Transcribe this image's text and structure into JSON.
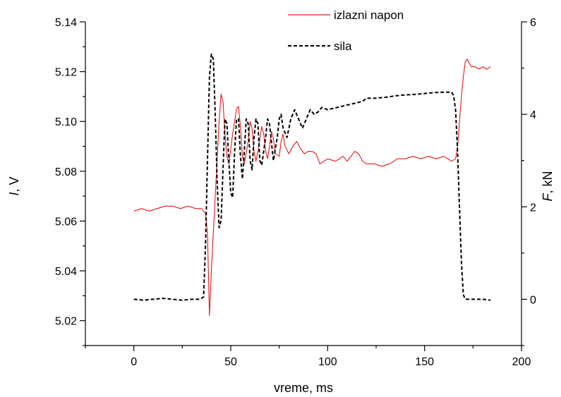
{
  "chart_data": {
    "type": "line",
    "xlabel": "vreme, ms",
    "ylabel_left": {
      "italic": "I",
      "rest": ", V"
    },
    "ylabel_right": {
      "italic": "F",
      "rest": ", kN"
    },
    "xlim": [
      -25,
      200
    ],
    "ylim_left": [
      5.01,
      5.14
    ],
    "ylim_right": [
      -1,
      6
    ],
    "x_ticks": [
      0,
      50,
      100,
      150,
      200
    ],
    "y_left_ticks": [
      "5.02",
      "5.04",
      "5.06",
      "5.08",
      "5.10",
      "5.12",
      "5.14"
    ],
    "y_right_ticks": [
      "0",
      "2",
      "4",
      "6"
    ],
    "grid": false,
    "legend_position": "top",
    "series": [
      {
        "name": "izlazni napon",
        "axis": "left",
        "color": "#e41a1c",
        "style": "solid",
        "points": [
          [
            0,
            5.064
          ],
          [
            4,
            5.065
          ],
          [
            8,
            5.064
          ],
          [
            12,
            5.065
          ],
          [
            16,
            5.066
          ],
          [
            20,
            5.066
          ],
          [
            24,
            5.065
          ],
          [
            28,
            5.066
          ],
          [
            32,
            5.065
          ],
          [
            35,
            5.065
          ],
          [
            37,
            5.063
          ],
          [
            38,
            5.055
          ],
          [
            39,
            5.022
          ],
          [
            40,
            5.04
          ],
          [
            42,
            5.07
          ],
          [
            44,
            5.1
          ],
          [
            45,
            5.111
          ],
          [
            46,
            5.108
          ],
          [
            47,
            5.095
          ],
          [
            48,
            5.086
          ],
          [
            49,
            5.083
          ],
          [
            51,
            5.095
          ],
          [
            53,
            5.105
          ],
          [
            54,
            5.106
          ],
          [
            55,
            5.098
          ],
          [
            56,
            5.086
          ],
          [
            57,
            5.083
          ],
          [
            59,
            5.092
          ],
          [
            60,
            5.1
          ],
          [
            61,
            5.097
          ],
          [
            62,
            5.088
          ],
          [
            63,
            5.084
          ],
          [
            64,
            5.088
          ],
          [
            66,
            5.098
          ],
          [
            67,
            5.095
          ],
          [
            68,
            5.088
          ],
          [
            69,
            5.085
          ],
          [
            70,
            5.09
          ],
          [
            71,
            5.096
          ],
          [
            72,
            5.093
          ],
          [
            73,
            5.087
          ],
          [
            75,
            5.086
          ],
          [
            76,
            5.092
          ],
          [
            77,
            5.095
          ],
          [
            78,
            5.09
          ],
          [
            80,
            5.087
          ],
          [
            82,
            5.09
          ],
          [
            84,
            5.092
          ],
          [
            86,
            5.089
          ],
          [
            88,
            5.087
          ],
          [
            90,
            5.088
          ],
          [
            92,
            5.088
          ],
          [
            94,
            5.087
          ],
          [
            96,
            5.083
          ],
          [
            98,
            5.084
          ],
          [
            100,
            5.085
          ],
          [
            104,
            5.084
          ],
          [
            108,
            5.086
          ],
          [
            110,
            5.084
          ],
          [
            112,
            5.086
          ],
          [
            114,
            5.088
          ],
          [
            116,
            5.087
          ],
          [
            118,
            5.084
          ],
          [
            120,
            5.083
          ],
          [
            124,
            5.083
          ],
          [
            128,
            5.082
          ],
          [
            132,
            5.083
          ],
          [
            136,
            5.085
          ],
          [
            140,
            5.085
          ],
          [
            144,
            5.086
          ],
          [
            148,
            5.085
          ],
          [
            152,
            5.086
          ],
          [
            156,
            5.085
          ],
          [
            160,
            5.086
          ],
          [
            164,
            5.084
          ],
          [
            166,
            5.085
          ],
          [
            167,
            5.09
          ],
          [
            168,
            5.1
          ],
          [
            169,
            5.11
          ],
          [
            170,
            5.118
          ],
          [
            171,
            5.124
          ],
          [
            172,
            5.125
          ],
          [
            174,
            5.122
          ],
          [
            176,
            5.122
          ],
          [
            178,
            5.121
          ],
          [
            180,
            5.122
          ],
          [
            182,
            5.121
          ],
          [
            184,
            5.122
          ]
        ]
      },
      {
        "name": "sila",
        "axis": "right",
        "color": "#000000",
        "style": "dashed",
        "points": [
          [
            0,
            0.0
          ],
          [
            5,
            -0.02
          ],
          [
            10,
            0.0
          ],
          [
            15,
            0.02
          ],
          [
            20,
            0.0
          ],
          [
            25,
            -0.02
          ],
          [
            30,
            0.0
          ],
          [
            34,
            0.0
          ],
          [
            36,
            0.05
          ],
          [
            37,
            1.2
          ],
          [
            38,
            3.0
          ],
          [
            39,
            4.8
          ],
          [
            40,
            5.3
          ],
          [
            41,
            5.2
          ],
          [
            42,
            4.0
          ],
          [
            43,
            2.5
          ],
          [
            44,
            1.55
          ],
          [
            45,
            1.7
          ],
          [
            46,
            2.8
          ],
          [
            47,
            3.9
          ],
          [
            48,
            3.8
          ],
          [
            49,
            3.0
          ],
          [
            50,
            2.3
          ],
          [
            51,
            2.2
          ],
          [
            52,
            3.2
          ],
          [
            53,
            3.9
          ],
          [
            54,
            3.9
          ],
          [
            55,
            3.1
          ],
          [
            56,
            2.6
          ],
          [
            57,
            3.2
          ],
          [
            58,
            3.9
          ],
          [
            59,
            3.8
          ],
          [
            60,
            3.0
          ],
          [
            61,
            2.8
          ],
          [
            62,
            3.5
          ],
          [
            63,
            3.9
          ],
          [
            64,
            3.8
          ],
          [
            65,
            3.0
          ],
          [
            66,
            2.9
          ],
          [
            68,
            3.5
          ],
          [
            69,
            3.9
          ],
          [
            70,
            3.8
          ],
          [
            72,
            3.0
          ],
          [
            74,
            3.5
          ],
          [
            75,
            3.9
          ],
          [
            76,
            4.0
          ],
          [
            77,
            3.7
          ],
          [
            79,
            3.5
          ],
          [
            81,
            3.9
          ],
          [
            83,
            4.1
          ],
          [
            85,
            3.9
          ],
          [
            87,
            3.7
          ],
          [
            89,
            3.9
          ],
          [
            91,
            4.1
          ],
          [
            93,
            4.0
          ],
          [
            95,
            4.05
          ],
          [
            97,
            4.15
          ],
          [
            100,
            4.1
          ],
          [
            105,
            4.15
          ],
          [
            110,
            4.2
          ],
          [
            115,
            4.25
          ],
          [
            118,
            4.28
          ],
          [
            120,
            4.35
          ],
          [
            125,
            4.35
          ],
          [
            130,
            4.37
          ],
          [
            135,
            4.4
          ],
          [
            140,
            4.42
          ],
          [
            145,
            4.43
          ],
          [
            150,
            4.45
          ],
          [
            155,
            4.47
          ],
          [
            160,
            4.48
          ],
          [
            164,
            4.48
          ],
          [
            165,
            4.4
          ],
          [
            166,
            4.1
          ],
          [
            167,
            3.2
          ],
          [
            168,
            2.0
          ],
          [
            169,
            0.8
          ],
          [
            170,
            0.1
          ],
          [
            171,
            0.0
          ],
          [
            175,
            0.0
          ],
          [
            180,
            0.0
          ],
          [
            184,
            -0.02
          ]
        ]
      }
    ]
  }
}
